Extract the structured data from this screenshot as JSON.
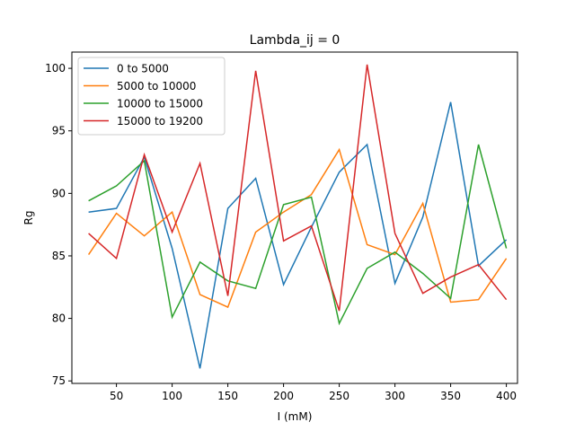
{
  "chart_data": {
    "type": "line",
    "title": "Lambda_ij = 0",
    "xlabel": "I (mM)",
    "ylabel": "Rg",
    "xlim": [
      10,
      410
    ],
    "ylim": [
      74.8,
      101.3
    ],
    "xticks": [
      50,
      100,
      150,
      200,
      250,
      300,
      350,
      400
    ],
    "yticks": [
      75,
      80,
      85,
      90,
      95,
      100
    ],
    "grid": false,
    "legend_position": "top-left",
    "x": [
      25,
      50,
      75,
      100,
      125,
      150,
      175,
      200,
      225,
      250,
      275,
      300,
      325,
      350,
      375,
      400
    ],
    "series": [
      {
        "name": "0 to 5000",
        "color": "#1f77b4",
        "values": [
          88.5,
          88.8,
          92.9,
          85.6,
          76.0,
          88.8,
          91.2,
          82.7,
          87.3,
          91.7,
          93.9,
          82.8,
          88.1,
          97.3,
          84.2,
          86.3
        ]
      },
      {
        "name": "5000 to 10000",
        "color": "#ff7f0e",
        "values": [
          85.1,
          88.4,
          86.6,
          88.5,
          81.9,
          80.9,
          86.9,
          88.5,
          89.9,
          93.5,
          85.9,
          85.1,
          89.2,
          81.3,
          81.5,
          84.8
        ]
      },
      {
        "name": "10000 to 15000",
        "color": "#2ca02c",
        "values": [
          89.4,
          90.6,
          92.6,
          80.1,
          84.5,
          83.0,
          82.4,
          89.1,
          89.7,
          79.6,
          84.0,
          85.3,
          83.6,
          81.6,
          93.9,
          85.6
        ]
      },
      {
        "name": "15000 to 19200",
        "color": "#d62728",
        "values": [
          86.8,
          84.8,
          93.1,
          86.9,
          92.4,
          81.8,
          99.8,
          86.2,
          87.4,
          80.6,
          100.3,
          86.8,
          82.0,
          83.3,
          84.3,
          81.5
        ]
      }
    ]
  }
}
